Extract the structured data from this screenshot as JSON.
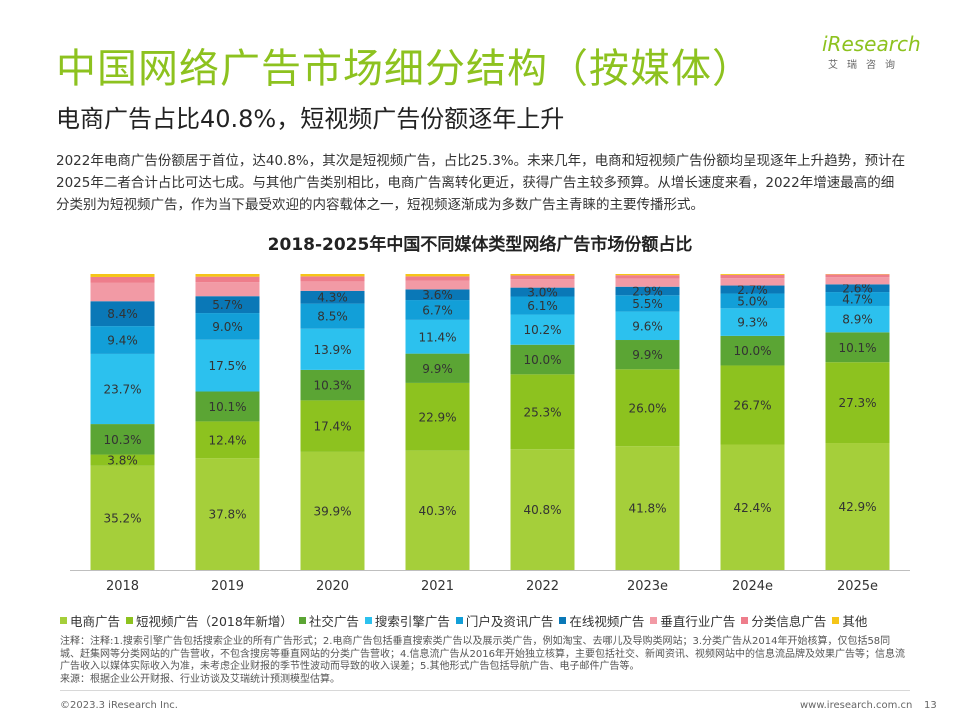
{
  "page": {
    "title": "中国网络广告市场细分结构（按媒体）",
    "subtitle": "电商广告占比40.8%，短视频广告份额逐年上升",
    "description": "2022年电商广告份额居于首位，达40.8%，其次是短视频广告，占比25.3%。未来几年，电商和短视频广告份额均呈现逐年上升趋势，预计在2025年二者合计占比可达七成。与其他广告类别相比，电商广告离转化更近，获得广告主较多预算。从增长速度来看，2022年增速最高的细分类别为短视频广告，作为当下最受欢迎的内容载体之一，短视频逐渐成为多数广告主青睐的主要传播形式。",
    "notes": "注释：注释:1.搜索引擎广告包括搜索企业的所有广告形式；2.电商广告包括垂直搜索类广告以及展示类广告，例如淘宝、去哪儿及导购类网站；3.分类广告从2014年开始核算，仅包括58同城、赶集网等分类网站的广告营收，不包含搜房等垂直网站的分类广告营收；4.信息流广告从2016年开始独立核算，主要包括社交、新闻资讯、视频网站中的信息流品牌及效果广告等；信息流广告收入以媒体实际收入为准，未考虑企业财报的季节性波动而导致的收入误差；5.其他形式广告包括导航广告、电子邮件广告等。",
    "source": "来源：根据企业公开财报、行业访谈及艾瑞统计预测模型估算。",
    "footer_left": "©2023.3 iResearch Inc.",
    "footer_right": "www.iresearch.com.cn",
    "page_number": "13"
  },
  "logo": {
    "word": "iResearch",
    "sub": "艾瑞咨询"
  },
  "chart_data": {
    "type": "bar",
    "stacked": true,
    "title": "2018-2025年中国不同媒体类型网络广告市场份额占比",
    "categories": [
      "2018",
      "2019",
      "2020",
      "2021",
      "2022",
      "2023e",
      "2024e",
      "2025e"
    ],
    "ylim": [
      0,
      100
    ],
    "series": [
      {
        "name": "电商广告",
        "color": "#A5CF3A",
        "values": [
          35.2,
          37.8,
          39.9,
          40.3,
          40.8,
          41.8,
          42.4,
          42.9
        ]
      },
      {
        "name": "短视频广告（2018年新增）",
        "color": "#8DC21F",
        "values": [
          3.8,
          12.4,
          17.4,
          22.9,
          25.3,
          26.0,
          26.7,
          27.3
        ]
      },
      {
        "name": "社交广告",
        "color": "#5BA534",
        "values": [
          10.3,
          10.1,
          10.3,
          9.9,
          10.0,
          9.9,
          10.0,
          10.1
        ]
      },
      {
        "name": "搜索引擎广告",
        "color": "#2CC1EE",
        "values": [
          23.7,
          17.5,
          13.9,
          11.4,
          10.2,
          9.6,
          9.3,
          8.9
        ]
      },
      {
        "name": "门户及资讯广告",
        "color": "#129FD8",
        "values": [
          9.4,
          9.0,
          8.5,
          6.7,
          6.1,
          5.5,
          5.0,
          4.7
        ]
      },
      {
        "name": "在线视频广告",
        "color": "#0A78B7",
        "values": [
          8.4,
          5.7,
          4.3,
          3.6,
          3.0,
          2.9,
          2.7,
          2.6
        ]
      },
      {
        "name": "垂直行业广告",
        "color": "#F29AA5",
        "values": [
          6.2,
          4.7,
          3.2,
          2.9,
          2.8,
          2.7,
          2.5,
          2.4
        ]
      },
      {
        "name": "分类信息广告",
        "color": "#EE7D8B",
        "values": [
          2.0,
          1.9,
          1.7,
          1.5,
          1.3,
          1.2,
          1.1,
          1.0
        ]
      },
      {
        "name": "其他",
        "color": "#F5C518",
        "values": [
          1.0,
          0.9,
          0.8,
          0.8,
          0.5,
          0.4,
          0.3,
          0.1
        ]
      }
    ],
    "labeled_series": [
      "电商广告",
      "短视频广告（2018年新增）",
      "社交广告",
      "搜索引擎广告",
      "门户及资讯广告",
      "在线视频广告"
    ]
  }
}
